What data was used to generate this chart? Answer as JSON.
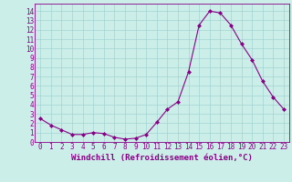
{
  "x": [
    0,
    1,
    2,
    3,
    4,
    5,
    6,
    7,
    8,
    9,
    10,
    11,
    12,
    13,
    14,
    15,
    16,
    17,
    18,
    19,
    20,
    21,
    22,
    23
  ],
  "y": [
    2.5,
    1.8,
    1.3,
    0.8,
    0.8,
    1.0,
    0.9,
    0.5,
    0.3,
    0.4,
    0.8,
    2.1,
    3.5,
    4.3,
    7.5,
    12.5,
    14.0,
    13.8,
    12.5,
    10.5,
    8.8,
    6.5,
    4.8,
    3.5
  ],
  "line_color": "#880088",
  "marker": "D",
  "marker_size": 2.0,
  "line_width": 0.8,
  "bg_color": "#cceee8",
  "grid_color": "#99cccc",
  "xlabel": "Windchill (Refroidissement éolien,°C)",
  "ylabel_ticks": [
    0,
    1,
    2,
    3,
    4,
    5,
    6,
    7,
    8,
    9,
    10,
    11,
    12,
    13,
    14
  ],
  "xlim": [
    -0.5,
    23.5
  ],
  "ylim": [
    0,
    14.8
  ],
  "xlabel_fontsize": 6.5,
  "tick_fontsize": 5.5,
  "xlabel_color": "#880088",
  "tick_color": "#880088",
  "spine_color": "#880088"
}
